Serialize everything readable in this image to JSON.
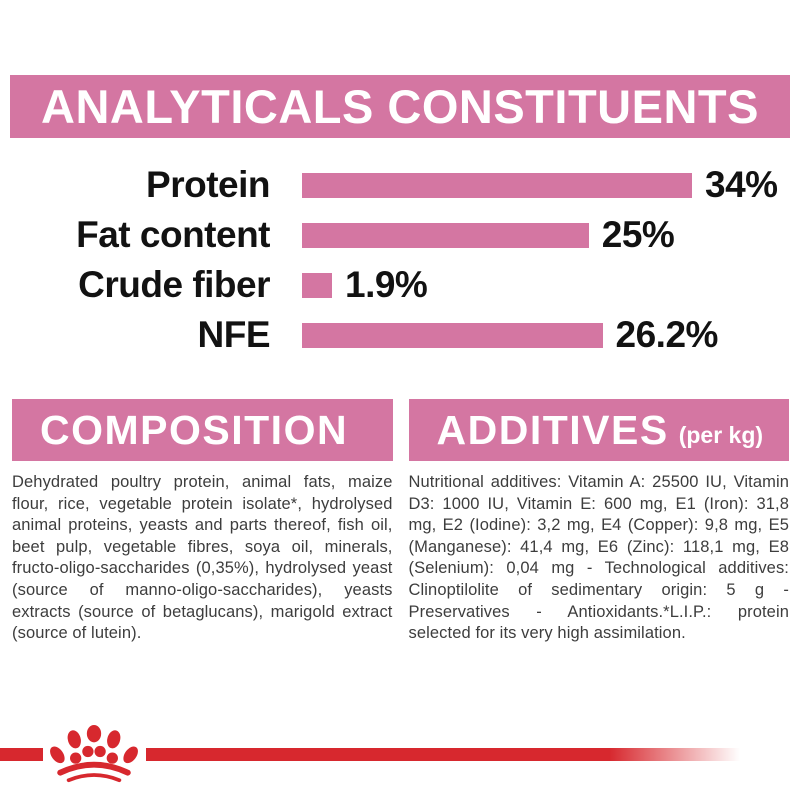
{
  "header": {
    "title": "ANALYTICALS CONSTITUENTS"
  },
  "chart_data": {
    "type": "bar",
    "orientation": "horizontal",
    "title": "ANALYTICALS CONSTITUENTS",
    "categories": [
      "Protein",
      "Fat content",
      "Crude fiber",
      "NFE"
    ],
    "values": [
      34,
      25,
      1.9,
      26.2
    ],
    "display_values": [
      "34%",
      "25%",
      "1.9%",
      "26.2%"
    ],
    "unit": "%",
    "xlim": [
      0,
      34
    ],
    "bar_color": "#d476a2",
    "grid": false,
    "legend": false
  },
  "composition": {
    "title": "COMPOSITION",
    "body": "Dehydrated poultry protein, animal fats, maize flour, rice, vegetable protein isolate*, hydrolysed animal proteins, yeasts and parts thereof, fish oil, beet pulp, vegetable fibres, soya oil, minerals, fructo-oligo-saccharides (0,35%), hydrolysed yeast (source of manno-oligo-saccharides), yeasts extracts (source of betaglucans), marigold extract (source of lutein)."
  },
  "additives": {
    "title": "ADDITIVES",
    "unit_label": "(per kg)",
    "body": "Nutritional additives: Vitamin A: 25500 IU, Vitamin D3: 1000 IU, Vitamin E: 600 mg, E1 (Iron): 31,8 mg, E2 (Iodine): 3,2 mg, E4 (Copper): 9,8 mg, E5 (Manganese): 41,4 mg, E6 (Zinc): 118,1 mg, E8 (Selenium): 0,04 mg - Technological additives: Clinoptilolite of sedimentary origin: 5 g - Preservatives - Antioxidants.*L.I.P.: protein selected for its very high assimilation."
  },
  "footer": {
    "brand_logo": "royal-canin-crown"
  },
  "colors": {
    "pink": "#d476a2",
    "red": "#d7282e",
    "text": "#3d3d3d"
  }
}
